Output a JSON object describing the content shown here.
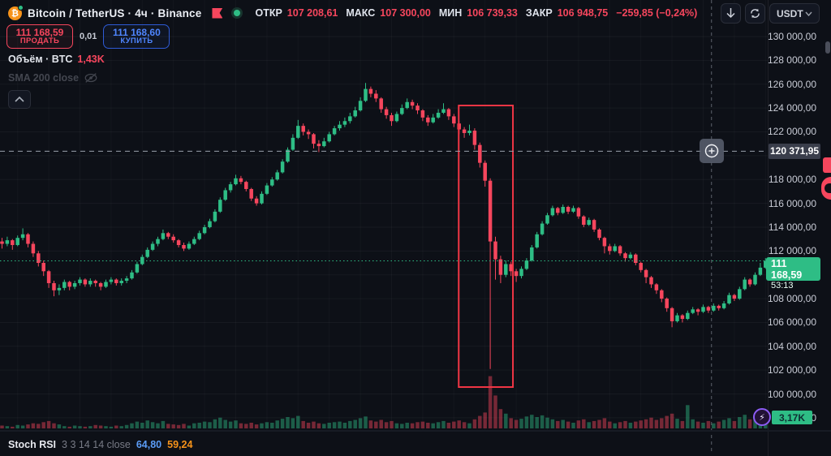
{
  "header": {
    "symbol_title": "Bitcoin / TetherUS · 4ч · Binance",
    "ohlc": {
      "open_label": "ОТКР",
      "open": "107 208,61",
      "high_label": "МАКС",
      "high": "107 300,00",
      "low_label": "МИН",
      "low": "106 739,33",
      "close_label": "ЗАКР",
      "close": "106 948,75",
      "change": "−259,85 (−0,24%)"
    },
    "toolbar": {
      "currency": "USDT"
    }
  },
  "trade_panel": {
    "sell_price": "111 168,59",
    "sell_label": "ПРОДАТЬ",
    "spread": "0,01",
    "buy_price": "111 168,60",
    "buy_label": "КУПИТЬ"
  },
  "legend": {
    "volume_label": "Объём · BTC",
    "volume_value": "1,43K",
    "sma_label": "SMA 200 close"
  },
  "price_scale": {
    "crosshair_label": "120 371,95",
    "last_label": "111 168,59",
    "countdown": "53:13",
    "volume_badge": "3,17K",
    "ticks": [
      {
        "price": 130000,
        "label": "130 000,00"
      },
      {
        "price": 128000,
        "label": "128 000,00"
      },
      {
        "price": 126000,
        "label": "126 000,00"
      },
      {
        "price": 124000,
        "label": "124 000,00"
      },
      {
        "price": 122000,
        "label": "122 000,00"
      },
      {
        "price": 118000,
        "label": "118 000,00"
      },
      {
        "price": 116000,
        "label": "116 000,00"
      },
      {
        "price": 114000,
        "label": "114 000,00"
      },
      {
        "price": 112000,
        "label": "112 000,00"
      },
      {
        "price": 108000,
        "label": "108 000,00"
      },
      {
        "price": 106000,
        "label": "106 000,00"
      },
      {
        "price": 104000,
        "label": "104 000,00"
      },
      {
        "price": 102000,
        "label": "102 000,00"
      },
      {
        "price": 100000,
        "label": "100 000,00"
      },
      {
        "price": 98000,
        "label": "98 000,00"
      }
    ]
  },
  "indicator_panel": {
    "title": "Stoch RSI",
    "params": "3 3 14 14 close",
    "k_value": "64,80",
    "d_value": "59,24"
  },
  "colors": {
    "up": "#2ebd85",
    "down": "#f6465d",
    "up_vol": "rgba(46,189,133,0.45)",
    "down_vol": "rgba(246,70,93,0.45)",
    "buy_blue": "#4f86ff",
    "annotation_red": "#f23645",
    "crosshair": "#9aa0aa",
    "label_bg": "#3a3e4b",
    "accent_purple": "#8c5cf5",
    "stoch_k_blue": "#5b9cf6",
    "stoch_d_orange": "#f7931a"
  },
  "chart_data": {
    "type": "candlestick",
    "title": "Bitcoin / TetherUS",
    "interval": "4h",
    "exchange": "Binance",
    "price_unit": "USDT",
    "note": "candles are [open,high,low,close] in thousands of USDT; volumes in thousands of BTC",
    "y_axis": {
      "min_visible": 97000,
      "max_visible": 131200,
      "tick_step": 2000,
      "grid": true
    },
    "last_price": 111168.59,
    "last_candle_volume_k": 3.17,
    "crosshair": {
      "price": 120371.95,
      "x_index": 136.6
    },
    "candles_ohlc_k": [
      [
        112.8,
        113.1,
        112.2,
        112.6
      ],
      [
        112.6,
        113.2,
        112.4,
        112.9
      ],
      [
        112.9,
        113.0,
        112.1,
        112.5
      ],
      [
        112.5,
        113.3,
        112.4,
        113.1
      ],
      [
        113.1,
        113.9,
        112.9,
        113.4
      ],
      [
        113.4,
        113.5,
        112.3,
        112.6
      ],
      [
        112.6,
        112.8,
        111.5,
        111.8
      ],
      [
        111.8,
        112.0,
        110.7,
        111.0
      ],
      [
        111.0,
        111.2,
        109.9,
        110.3
      ],
      [
        110.3,
        110.4,
        108.9,
        109.3
      ],
      [
        109.3,
        109.5,
        108.2,
        108.7
      ],
      [
        108.7,
        109.2,
        108.3,
        108.9
      ],
      [
        108.9,
        109.6,
        108.7,
        109.4
      ],
      [
        109.4,
        109.5,
        108.7,
        109.0
      ],
      [
        109.0,
        109.5,
        108.8,
        109.3
      ],
      [
        109.3,
        109.8,
        109.1,
        109.6
      ],
      [
        109.6,
        109.7,
        109.0,
        109.2
      ],
      [
        109.2,
        109.7,
        109.0,
        109.5
      ],
      [
        109.5,
        109.6,
        109.0,
        109.3
      ],
      [
        109.3,
        109.4,
        108.7,
        109.0
      ],
      [
        109.0,
        109.6,
        108.9,
        109.4
      ],
      [
        109.4,
        109.8,
        109.2,
        109.6
      ],
      [
        109.6,
        109.7,
        109.1,
        109.3
      ],
      [
        109.3,
        109.7,
        109.1,
        109.5
      ],
      [
        109.5,
        109.9,
        109.3,
        109.7
      ],
      [
        109.7,
        110.4,
        109.6,
        110.2
      ],
      [
        110.2,
        111.1,
        110.1,
        110.9
      ],
      [
        110.9,
        111.7,
        110.8,
        111.5
      ],
      [
        111.5,
        112.3,
        111.4,
        112.1
      ],
      [
        112.1,
        112.8,
        112.0,
        112.6
      ],
      [
        112.6,
        113.2,
        112.4,
        113.0
      ],
      [
        113.0,
        113.8,
        112.9,
        113.5
      ],
      [
        113.5,
        113.6,
        113.0,
        113.2
      ],
      [
        113.2,
        113.4,
        112.7,
        112.9
      ],
      [
        112.9,
        113.0,
        112.3,
        112.5
      ],
      [
        112.5,
        112.7,
        112.0,
        112.2
      ],
      [
        112.2,
        112.8,
        112.1,
        112.6
      ],
      [
        112.6,
        113.2,
        112.5,
        113.0
      ],
      [
        113.0,
        113.7,
        112.9,
        113.5
      ],
      [
        113.5,
        114.2,
        113.4,
        114.0
      ],
      [
        114.0,
        114.7,
        113.9,
        114.5
      ],
      [
        114.5,
        115.5,
        114.4,
        115.3
      ],
      [
        115.3,
        116.5,
        115.2,
        116.3
      ],
      [
        116.3,
        117.3,
        116.2,
        117.1
      ],
      [
        117.1,
        117.8,
        116.9,
        117.6
      ],
      [
        117.6,
        118.4,
        117.5,
        118.1
      ],
      [
        118.1,
        118.3,
        117.6,
        117.8
      ],
      [
        117.8,
        117.9,
        117.0,
        117.2
      ],
      [
        117.2,
        117.3,
        116.2,
        116.4
      ],
      [
        116.4,
        116.6,
        115.8,
        116.0
      ],
      [
        116.0,
        117.0,
        115.9,
        116.8
      ],
      [
        116.8,
        117.7,
        116.7,
        117.5
      ],
      [
        117.5,
        118.2,
        117.4,
        118.0
      ],
      [
        118.0,
        118.8,
        117.9,
        118.6
      ],
      [
        118.6,
        119.7,
        118.5,
        119.5
      ],
      [
        119.5,
        120.7,
        119.4,
        120.5
      ],
      [
        120.5,
        121.8,
        120.4,
        121.5
      ],
      [
        121.5,
        123.0,
        121.4,
        122.5
      ],
      [
        122.5,
        122.7,
        121.7,
        122.0
      ],
      [
        122.0,
        122.2,
        121.4,
        121.8
      ],
      [
        121.8,
        121.9,
        120.6,
        121.0
      ],
      [
        121.0,
        121.3,
        120.3,
        120.8
      ],
      [
        120.8,
        121.5,
        120.7,
        121.2
      ],
      [
        121.2,
        122.0,
        121.1,
        121.8
      ],
      [
        121.8,
        122.5,
        121.7,
        122.3
      ],
      [
        122.3,
        122.9,
        122.1,
        122.6
      ],
      [
        122.6,
        123.2,
        122.4,
        122.9
      ],
      [
        122.9,
        123.6,
        122.7,
        123.3
      ],
      [
        123.3,
        124.1,
        123.2,
        123.8
      ],
      [
        123.8,
        124.9,
        123.7,
        124.6
      ],
      [
        124.6,
        126.1,
        124.5,
        125.6
      ],
      [
        125.6,
        125.8,
        124.9,
        125.2
      ],
      [
        125.2,
        125.5,
        124.5,
        124.8
      ],
      [
        124.8,
        124.9,
        123.6,
        123.9
      ],
      [
        123.9,
        124.1,
        123.1,
        123.4
      ],
      [
        123.4,
        123.6,
        122.5,
        122.9
      ],
      [
        122.9,
        123.7,
        122.8,
        123.5
      ],
      [
        123.5,
        124.3,
        123.4,
        124.0
      ],
      [
        124.0,
        124.8,
        123.9,
        124.5
      ],
      [
        124.5,
        124.7,
        123.9,
        124.2
      ],
      [
        124.2,
        124.4,
        123.5,
        123.8
      ],
      [
        123.8,
        123.9,
        122.9,
        123.2
      ],
      [
        123.2,
        123.4,
        122.5,
        122.8
      ],
      [
        122.8,
        123.5,
        122.7,
        123.2
      ],
      [
        123.2,
        123.9,
        123.1,
        123.6
      ],
      [
        123.6,
        124.4,
        123.5,
        123.9
      ],
      [
        123.9,
        124.0,
        123.0,
        123.3
      ],
      [
        123.3,
        123.5,
        122.4,
        122.7
      ],
      [
        122.7,
        122.9,
        121.8,
        122.2
      ],
      [
        122.2,
        122.4,
        121.5,
        121.9
      ],
      [
        121.9,
        122.6,
        121.7,
        122.1
      ],
      [
        122.1,
        122.3,
        120.5,
        120.9
      ],
      [
        120.9,
        121.1,
        119.0,
        119.4
      ],
      [
        119.4,
        119.6,
        117.4,
        117.9
      ],
      [
        117.9,
        118.1,
        102.1,
        112.8
      ],
      [
        112.8,
        113.2,
        109.6,
        111.3
      ],
      [
        111.3,
        111.6,
        109.3,
        110.0
      ],
      [
        110.0,
        111.2,
        109.8,
        110.9
      ],
      [
        110.9,
        111.1,
        109.9,
        110.3
      ],
      [
        110.3,
        110.5,
        109.4,
        109.9
      ],
      [
        109.9,
        110.7,
        109.7,
        110.5
      ],
      [
        110.5,
        111.4,
        110.4,
        111.2
      ],
      [
        111.2,
        112.5,
        111.1,
        112.3
      ],
      [
        112.3,
        113.6,
        112.2,
        113.4
      ],
      [
        113.4,
        114.5,
        113.3,
        114.3
      ],
      [
        114.3,
        115.2,
        114.2,
        115.0
      ],
      [
        115.0,
        115.8,
        114.9,
        115.6
      ],
      [
        115.6,
        115.7,
        115.0,
        115.2
      ],
      [
        115.2,
        115.9,
        115.1,
        115.7
      ],
      [
        115.7,
        115.8,
        115.1,
        115.3
      ],
      [
        115.3,
        115.8,
        115.2,
        115.6
      ],
      [
        115.6,
        115.7,
        114.7,
        114.9
      ],
      [
        114.9,
        115.0,
        114.0,
        114.2
      ],
      [
        114.2,
        114.8,
        114.1,
        114.6
      ],
      [
        114.6,
        114.7,
        113.6,
        113.8
      ],
      [
        113.8,
        113.9,
        112.9,
        113.1
      ],
      [
        113.1,
        113.2,
        111.8,
        112.4
      ],
      [
        112.4,
        112.6,
        111.7,
        112.0
      ],
      [
        112.0,
        112.6,
        111.9,
        112.4
      ],
      [
        112.4,
        112.5,
        111.6,
        111.8
      ],
      [
        111.8,
        111.9,
        111.1,
        111.4
      ],
      [
        111.4,
        111.9,
        111.3,
        111.7
      ],
      [
        111.7,
        111.8,
        110.8,
        111.0
      ],
      [
        111.0,
        111.1,
        110.2,
        110.4
      ],
      [
        110.4,
        110.5,
        109.3,
        109.8
      ],
      [
        109.8,
        109.9,
        108.9,
        109.2
      ],
      [
        109.2,
        109.3,
        108.4,
        108.7
      ],
      [
        108.7,
        108.8,
        107.7,
        108.0
      ],
      [
        108.0,
        108.1,
        106.9,
        107.2
      ],
      [
        107.2,
        107.3,
        105.6,
        106.1
      ],
      [
        106.1,
        106.8,
        106.0,
        106.6
      ],
      [
        106.6,
        106.7,
        106.0,
        106.3
      ],
      [
        106.3,
        107.0,
        106.2,
        106.8
      ],
      [
        106.8,
        107.3,
        106.7,
        107.1
      ],
      [
        107.1,
        107.2,
        106.6,
        106.9
      ],
      [
        106.9,
        107.5,
        106.8,
        107.3
      ],
      [
        107.3,
        107.4,
        106.8,
        107.0
      ],
      [
        107.0,
        107.6,
        106.9,
        107.4
      ],
      [
        107.4,
        107.5,
        107.0,
        107.2
      ],
      [
        107.2,
        107.8,
        107.1,
        107.6
      ],
      [
        107.6,
        108.5,
        107.5,
        108.3
      ],
      [
        108.3,
        108.4,
        107.8,
        108.0
      ],
      [
        108.0,
        109.0,
        107.9,
        108.8
      ],
      [
        108.8,
        109.8,
        108.7,
        109.6
      ],
      [
        109.6,
        109.7,
        109.0,
        109.2
      ],
      [
        109.2,
        110.2,
        109.1,
        110.0
      ],
      [
        110.0,
        111.0,
        109.9,
        110.6
      ],
      [
        110.6,
        111.4,
        110.5,
        111.169
      ]
    ],
    "volumes_k": [
      0.5,
      0.4,
      0.3,
      0.6,
      0.5,
      0.7,
      0.9,
      0.8,
      1.1,
      1.3,
      0.9,
      0.7,
      0.4,
      0.3,
      0.5,
      0.4,
      0.3,
      0.4,
      0.6,
      0.5,
      0.4,
      0.3,
      0.5,
      0.4,
      0.6,
      0.9,
      1.2,
      1.0,
      1.4,
      1.1,
      0.9,
      1.3,
      0.8,
      0.7,
      0.6,
      0.8,
      0.5,
      0.9,
      1.0,
      1.2,
      1.1,
      1.6,
      1.9,
      1.5,
      1.2,
      1.4,
      0.9,
      0.8,
      1.0,
      0.7,
      0.9,
      1.1,
      1.0,
      1.4,
      1.7,
      2.0,
      1.8,
      2.2,
      1.3,
      1.0,
      1.2,
      0.9,
      0.8,
      1.0,
      1.1,
      1.2,
      1.0,
      1.3,
      1.5,
      1.8,
      2.1,
      1.4,
      1.2,
      1.5,
      1.1,
      1.3,
      0.9,
      0.8,
      1.0,
      0.9,
      1.1,
      1.2,
      1.0,
      0.9,
      1.1,
      1.3,
      1.0,
      1.2,
      1.4,
      1.1,
      0.9,
      1.6,
      2.2,
      2.8,
      9.2,
      5.8,
      3.4,
      2.6,
      1.8,
      1.5,
      1.7,
      2.1,
      2.4,
      2.0,
      2.3,
      1.9,
      1.6,
      1.3,
      1.5,
      1.2,
      1.0,
      1.4,
      1.6,
      1.1,
      1.3,
      1.5,
      1.8,
      1.2,
      0.9,
      1.1,
      1.3,
      1.0,
      1.2,
      1.4,
      1.6,
      1.9,
      1.5,
      1.8,
      2.2,
      2.6,
      1.7,
      1.3,
      4.1,
      1.6,
      1.2,
      1.0,
      1.3,
      0.9,
      1.2,
      1.5,
      1.8,
      1.3,
      2.0,
      2.4,
      1.6,
      2.1,
      2.6,
      3.17
    ],
    "annotations": [
      {
        "type": "rectangle",
        "color": "#f23645",
        "from_index": 88.4,
        "to_index": 97.9,
        "price_top": 124210,
        "price_bottom": 100580
      }
    ]
  }
}
